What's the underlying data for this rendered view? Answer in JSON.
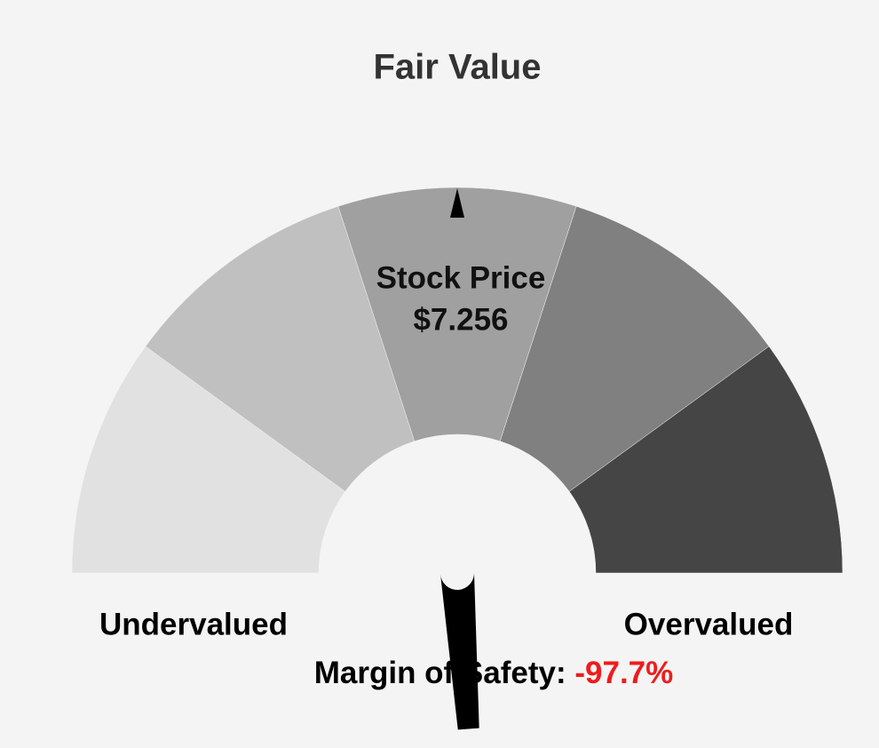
{
  "chart_data": {
    "type": "gauge",
    "title": "Fair Value",
    "range": [
      50,
      -50
    ],
    "segment_colors": [
      "#e1e1e1",
      "#c0c0c0",
      "#a0a0a0",
      "#808080",
      "#454545"
    ],
    "center_label": "Stock Price",
    "center_value": "$7.256",
    "left_label": "Undervalued",
    "right_label": "Overvalued",
    "value_caption": "Margin of Safety: ",
    "value": -97.7,
    "value_label": "-97.7%",
    "value_color": "#ee1c1c",
    "needle_color": "#000000",
    "title_color": "#333333"
  }
}
